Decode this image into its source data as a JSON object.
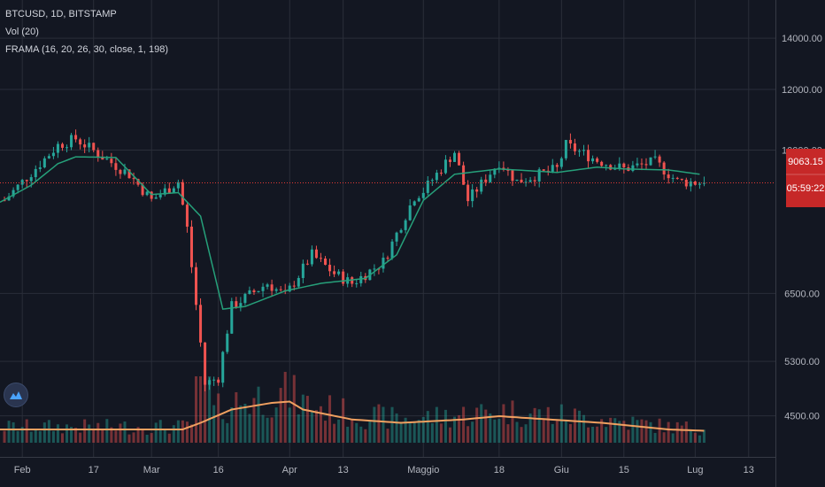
{
  "legend": {
    "symbol": "BTCUSD, 1D, BITSTAMP",
    "volume": "Vol (20)",
    "frama": "FRAMA (16, 20, 26, 30, close, 1, 198)"
  },
  "price_tag": {
    "value": "9063.15",
    "countdown": "05:59:22"
  },
  "colors": {
    "background": "#131722",
    "grid": "#2a2e39",
    "up": "#26a69a",
    "down": "#ef5350",
    "frama": "#26a07a",
    "volume_ma": "#f0a060",
    "price_line": "#e53935",
    "axis_text": "#b2b5be"
  },
  "icons": {
    "logo": "tradingview-logo-icon"
  },
  "chart_data": {
    "type": "candlestick",
    "title": "BTCUSD, 1D, BITSTAMP",
    "price_axis": {
      "scale": "log",
      "ticks": [
        14000.0,
        12000.0,
        10000.0,
        6500.0,
        5300.0,
        4500.0
      ],
      "tick_labels": [
        "14000.00",
        "12000.00",
        "10000.00",
        "6500.00",
        "5300.00",
        "4500.00"
      ],
      "range": [
        4150,
        15700
      ]
    },
    "time_axis": {
      "start": "2020-01-27",
      "end": "2020-07-19",
      "ticks": [
        "2020-02-01",
        "2020-02-17",
        "2020-03-01",
        "2020-03-16",
        "2020-04-01",
        "2020-04-13",
        "2020-05-01",
        "2020-05-18",
        "2020-06-01",
        "2020-06-15",
        "2020-07-01",
        "2020-07-13"
      ],
      "tick_labels": [
        "Feb",
        "17",
        "Mar",
        "16",
        "Apr",
        "13",
        "Maggio",
        "18",
        "Giu",
        "15",
        "Lug",
        "13"
      ]
    },
    "last_price": 9063.15,
    "price_path": [
      [
        "2020-01-28",
        8600
      ],
      [
        "2020-02-09",
        10150
      ],
      [
        "2020-02-13",
        10350
      ],
      [
        "2020-02-19",
        9800
      ],
      [
        "2020-02-25",
        9300
      ],
      [
        "2020-03-01",
        8600
      ],
      [
        "2020-03-07",
        9100
      ],
      [
        "2020-03-09",
        7900
      ],
      [
        "2020-03-12",
        5600
      ],
      [
        "2020-03-13",
        4950
      ],
      [
        "2020-03-16",
        5050
      ],
      [
        "2020-03-19",
        6250
      ],
      [
        "2020-03-27",
        6700
      ],
      [
        "2020-03-31",
        6450
      ],
      [
        "2020-04-06",
        7300
      ],
      [
        "2020-04-11",
        6900
      ],
      [
        "2020-04-15",
        6700
      ],
      [
        "2020-04-22",
        7150
      ],
      [
        "2020-04-29",
        8700
      ],
      [
        "2020-05-01",
        8850
      ],
      [
        "2020-05-08",
        9950
      ],
      [
        "2020-05-11",
        8600
      ],
      [
        "2020-05-18",
        9650
      ],
      [
        "2020-05-22",
        9100
      ],
      [
        "2020-05-31",
        9450
      ],
      [
        "2020-06-02",
        10150
      ],
      [
        "2020-06-09",
        9700
      ],
      [
        "2020-06-15",
        9450
      ],
      [
        "2020-06-22",
        9650
      ],
      [
        "2020-06-27",
        9100
      ],
      [
        "2020-07-03",
        9063
      ]
    ],
    "frama": [
      [
        "2020-01-27",
        8550
      ],
      [
        "2020-02-03",
        9000
      ],
      [
        "2020-02-09",
        9600
      ],
      [
        "2020-02-13",
        9800
      ],
      [
        "2020-02-22",
        9780
      ],
      [
        "2020-03-01",
        8750
      ],
      [
        "2020-03-07",
        8800
      ],
      [
        "2020-03-12",
        8200
      ],
      [
        "2020-03-17",
        6200
      ],
      [
        "2020-03-22",
        6250
      ],
      [
        "2020-03-31",
        6550
      ],
      [
        "2020-04-08",
        6700
      ],
      [
        "2020-04-18",
        6800
      ],
      [
        "2020-04-25",
        7300
      ],
      [
        "2020-05-01",
        8600
      ],
      [
        "2020-05-08",
        9300
      ],
      [
        "2020-05-18",
        9450
      ],
      [
        "2020-05-31",
        9350
      ],
      [
        "2020-06-09",
        9500
      ],
      [
        "2020-06-15",
        9450
      ],
      [
        "2020-06-25",
        9420
      ],
      [
        "2020-07-02",
        9300
      ]
    ],
    "volume_ma": [
      [
        "2020-01-27",
        0.2
      ],
      [
        "2020-03-08",
        0.2
      ],
      [
        "2020-03-12",
        0.3
      ],
      [
        "2020-03-19",
        0.5
      ],
      [
        "2020-03-28",
        0.6
      ],
      [
        "2020-04-01",
        0.62
      ],
      [
        "2020-04-04",
        0.5
      ],
      [
        "2020-04-15",
        0.35
      ],
      [
        "2020-04-26",
        0.3
      ],
      [
        "2020-05-10",
        0.35
      ],
      [
        "2020-05-18",
        0.4
      ],
      [
        "2020-05-27",
        0.36
      ],
      [
        "2020-06-10",
        0.3
      ],
      [
        "2020-06-25",
        0.2
      ],
      [
        "2020-07-03",
        0.18
      ]
    ]
  }
}
